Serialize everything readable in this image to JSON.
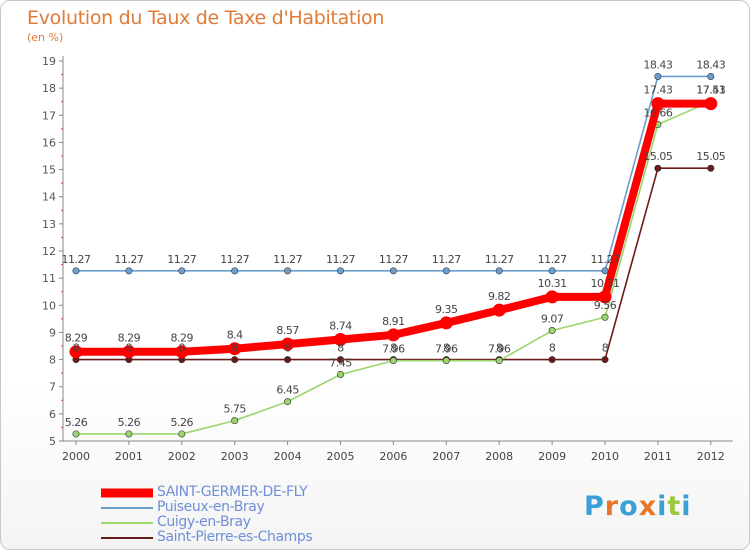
{
  "chart_data": {
    "type": "line",
    "title": "Evolution du Taux de Taxe d'Habitation",
    "unit_label": "(en %)",
    "xlabel": "",
    "ylabel": "",
    "ylim": [
      5,
      19
    ],
    "yticks": [
      5,
      6,
      7,
      8,
      9,
      10,
      11,
      12,
      13,
      14,
      15,
      16,
      17,
      18,
      19
    ],
    "grid": false,
    "legend_position": "bottom-left",
    "categories": [
      "2000",
      "2001",
      "2002",
      "2003",
      "2004",
      "2005",
      "2006",
      "2007",
      "2008",
      "2009",
      "2010",
      "2011",
      "2012"
    ],
    "series": [
      {
        "name": "Saint-Pierre-es-Champs",
        "color": "#6b1a1a",
        "values": [
          8,
          8,
          8,
          8,
          8,
          8,
          8,
          8,
          8,
          8,
          8,
          15.05,
          15.05
        ],
        "labels": [
          "8",
          "8",
          "8",
          "8",
          "8",
          "8",
          "8",
          "8",
          "8",
          "8",
          "8",
          "15.05",
          "15.05"
        ]
      },
      {
        "name": "Cuigy-en-Bray",
        "color": "#9ad66b",
        "values": [
          5.26,
          5.26,
          5.26,
          5.75,
          6.45,
          7.45,
          7.96,
          7.96,
          7.96,
          9.07,
          9.56,
          16.66,
          17.51
        ],
        "labels": [
          "5.26",
          "5.26",
          "5.26",
          "5.75",
          "6.45",
          "7.45",
          "7.96",
          "7.96",
          "7.96",
          "9.07",
          "9.56",
          "16.66",
          "17.51"
        ]
      },
      {
        "name": "Puiseux-en-Bray",
        "color": "#6b9fcf",
        "values": [
          11.27,
          11.27,
          11.27,
          11.27,
          11.27,
          11.27,
          11.27,
          11.27,
          11.27,
          11.27,
          11.27,
          18.43,
          18.43
        ],
        "labels": [
          "11.27",
          "11.27",
          "11.27",
          "11.27",
          "11.27",
          "11.27",
          "11.27",
          "11.27",
          "11.27",
          "11.27",
          "11.27",
          "18.43",
          "18.43"
        ]
      },
      {
        "name": "SAINT-GERMER-DE-FLY",
        "color": "#ff0000",
        "values": [
          8.29,
          8.29,
          8.29,
          8.4,
          8.57,
          8.74,
          8.91,
          9.35,
          9.82,
          10.31,
          10.31,
          17.43,
          17.43
        ],
        "labels": [
          "8.29",
          "8.29",
          "8.29",
          "8.4",
          "8.57",
          "8.74",
          "8.91",
          "9.35",
          "9.82",
          "10.31",
          "10.31",
          "17.43",
          "17.43"
        ]
      }
    ]
  },
  "legend": [
    {
      "label": "SAINT-GERMER-DE-FLY",
      "color": "#ff0000"
    },
    {
      "label": "Puiseux-en-Bray",
      "color": "#6b9fcf"
    },
    {
      "label": "Cuigy-en-Bray",
      "color": "#9ad66b"
    },
    {
      "label": "Saint-Pierre-es-Champs",
      "color": "#6b1a1a"
    }
  ],
  "logo": {
    "text": "Proxiti",
    "colors": [
      "#3aa0d8",
      "#e8762a",
      "#3aa0d8",
      "#e8762a",
      "#3aa0d8",
      "#9bc93c",
      "#3aa0d8"
    ]
  }
}
